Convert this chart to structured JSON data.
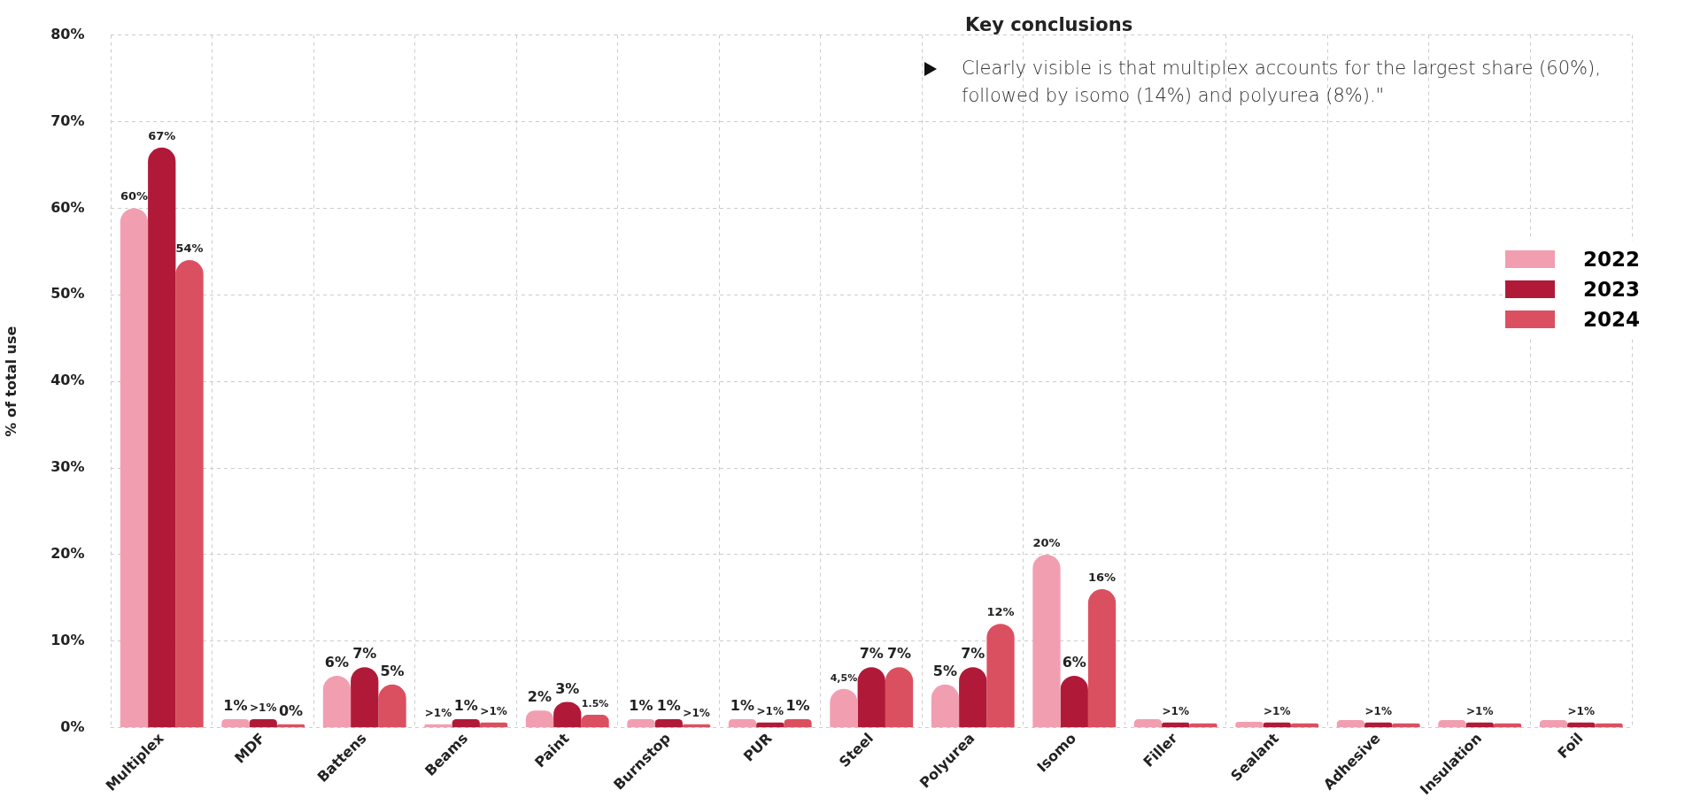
{
  "chart_data": {
    "type": "bar",
    "ylabel": "% of total use",
    "categories": [
      "Multiplex",
      "MDF",
      "Battens",
      "Beams",
      "Paint",
      "Burnstop",
      "PUR",
      "Steel",
      "Polyurea",
      "Isomo",
      "Filler",
      "Sealant",
      "Adhesive",
      "Insulation",
      "Foil"
    ],
    "series": [
      {
        "name": "2022",
        "color": "#f29eb1",
        "values": [
          60,
          1,
          6,
          0.2,
          2,
          1,
          1,
          4.5,
          5,
          20,
          1,
          0.7,
          0.9,
          0.9,
          0.9
        ],
        "value_labels": [
          "60%",
          "1%",
          "6%",
          ">1%",
          "2%",
          "1%",
          "1%",
          "4,5%",
          "5%",
          "20%",
          null,
          null,
          null,
          null,
          null
        ]
      },
      {
        "name": "2023",
        "color": "#b01a38",
        "values": [
          67,
          1,
          7,
          1,
          3,
          1,
          0.6,
          7,
          7,
          6,
          0.6,
          0.6,
          0.6,
          0.6,
          0.6
        ],
        "value_labels": [
          "67%",
          ">1%",
          "7%",
          "1%",
          "3%",
          "1%",
          ">1%",
          "7%",
          "7%",
          "6%",
          ">1%",
          ">1%",
          ">1%",
          ">1%",
          ">1%"
        ]
      },
      {
        "name": "2024",
        "color": "#db5060",
        "values": [
          54,
          0,
          5,
          0.6,
          1.5,
          0.3,
          1,
          7,
          12,
          16,
          0.5,
          0.5,
          0.5,
          0.5,
          0.5
        ],
        "value_labels": [
          "54%",
          "0%",
          "5%",
          ">1%",
          "1.5%",
          ">1%",
          "1%",
          "7%",
          "12%",
          "16%",
          null,
          null,
          null,
          null,
          null
        ]
      }
    ],
    "ylim": [
      0,
      80
    ],
    "yticks": [
      {
        "value": 0,
        "label": "0%"
      },
      {
        "value": 10,
        "label": "10%"
      },
      {
        "value": 20,
        "label": "20%"
      },
      {
        "value": 30,
        "label": "30%"
      },
      {
        "value": 40,
        "label": "40%"
      },
      {
        "value": 50,
        "label": "50%"
      },
      {
        "value": 60,
        "label": "60%"
      },
      {
        "value": 70,
        "label": "70%"
      },
      {
        "value": 80,
        "label": "80%"
      }
    ],
    "grid": true,
    "legend": "right",
    "annotations": [
      "Key conclusions",
      "Clearly visible is that multiplex accounts for the largest share (60%), followed by isomo (14%) and polyurea (8%).\""
    ]
  }
}
